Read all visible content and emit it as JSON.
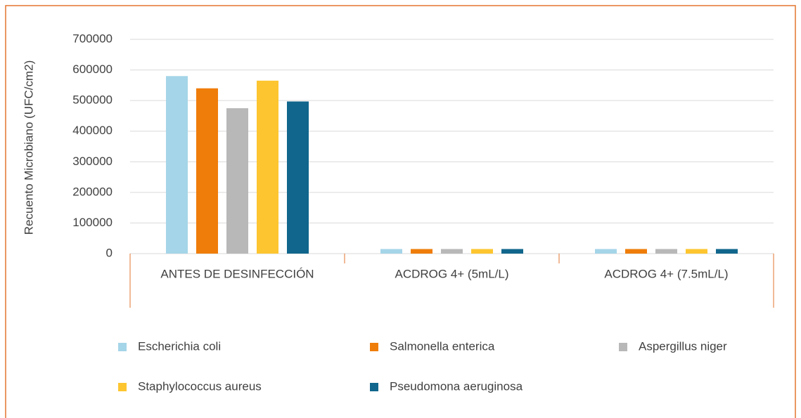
{
  "chart_data": {
    "type": "bar",
    "ylabel": "Recuento Microbiano (UFC/cm2)",
    "categories": [
      "ANTES DE DESINFECCIÓN",
      "ACDROG 4+ (5mL/L)",
      "ACDROG 4+ (7.5mL/L)"
    ],
    "series": [
      {
        "name": "Escherichia coli",
        "color": "#a5d5e8",
        "values": [
          580000,
          15000,
          15000
        ]
      },
      {
        "name": "Salmonella enterica",
        "color": "#ef7d0a",
        "values": [
          540000,
          15000,
          15000
        ]
      },
      {
        "name": "Aspergillus niger",
        "color": "#b8b8b8",
        "values": [
          475000,
          15000,
          15000
        ]
      },
      {
        "name": "Staphylococcus aureus",
        "color": "#fdc630",
        "values": [
          565000,
          15000,
          15000
        ]
      },
      {
        "name": "Pseudomona aeruginosa",
        "color": "#10668c",
        "values": [
          497000,
          15000,
          15000
        ]
      }
    ],
    "ylim": [
      0,
      700000
    ],
    "yticks": [
      0,
      100000,
      200000,
      300000,
      400000,
      500000,
      600000,
      700000
    ],
    "grid": true,
    "legend": "bottom"
  }
}
